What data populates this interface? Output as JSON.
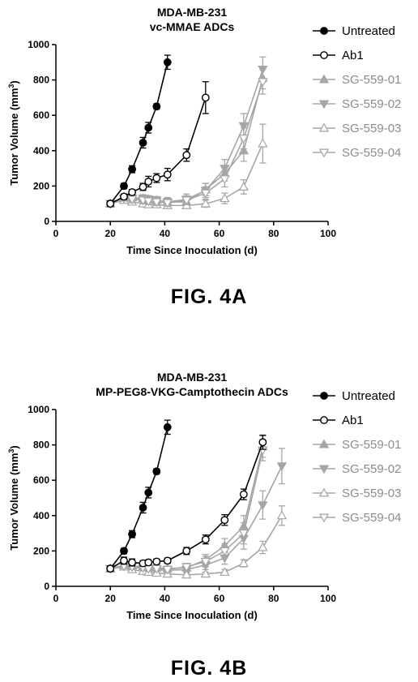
{
  "chart_data": [
    {
      "type": "line",
      "title": [
        "MDA-MB-231",
        "vc-MMAE ADCs"
      ],
      "xlabel": "Time Since Inoculation (d)",
      "ylabel": "Tumor Volume (mm",
      "ylabel_sup": "3",
      "ylabel_end": ")",
      "xlim": [
        0,
        100
      ],
      "ylim": [
        0,
        1000
      ],
      "xticks": [
        0,
        20,
        40,
        60,
        80,
        100
      ],
      "yticks": [
        0,
        200,
        400,
        600,
        800,
        1000
      ],
      "legend_position": "right",
      "series": [
        {
          "name": "Untreated",
          "marker": "circle-filled",
          "color": "#000000",
          "x": [
            20,
            25,
            28,
            32,
            34,
            37,
            41
          ],
          "y": [
            100,
            200,
            295,
            445,
            530,
            650,
            900
          ],
          "err": [
            15,
            15,
            20,
            30,
            30,
            15,
            40
          ]
        },
        {
          "name": "Ab1",
          "marker": "circle-open",
          "color": "#000000",
          "x": [
            20,
            25,
            28,
            32,
            34,
            37,
            41,
            48,
            55
          ],
          "y": [
            100,
            140,
            165,
            195,
            225,
            245,
            265,
            375,
            700
          ],
          "err": [
            15,
            15,
            15,
            20,
            30,
            25,
            35,
            35,
            90
          ]
        },
        {
          "name": "SG-559-01",
          "marker": "triangle-up-filled",
          "color": "#a6a6a6",
          "x": [
            20,
            25,
            28,
            32,
            34,
            37,
            41,
            48,
            55,
            62,
            69,
            76
          ],
          "y": [
            100,
            140,
            135,
            130,
            125,
            120,
            110,
            110,
            180,
            270,
            400,
            810
          ],
          "err": [
            10,
            15,
            20,
            20,
            20,
            20,
            20,
            25,
            35,
            40,
            60,
            60
          ]
        },
        {
          "name": "SG-559-02",
          "marker": "triangle-down-filled",
          "color": "#a6a6a6",
          "x": [
            20,
            25,
            28,
            32,
            34,
            37,
            41,
            48,
            55,
            62,
            69,
            76
          ],
          "y": [
            100,
            130,
            130,
            130,
            125,
            120,
            110,
            125,
            175,
            300,
            540,
            860
          ],
          "err": [
            10,
            15,
            20,
            20,
            20,
            20,
            25,
            30,
            40,
            50,
            70,
            70
          ]
        },
        {
          "name": "SG-559-03",
          "marker": "triangle-up-open",
          "color": "#a6a6a6",
          "x": [
            20,
            25,
            28,
            32,
            34,
            37,
            41,
            48,
            55,
            62,
            69,
            76
          ],
          "y": [
            100,
            120,
            110,
            100,
            95,
            95,
            90,
            90,
            100,
            130,
            195,
            440
          ],
          "err": [
            10,
            15,
            15,
            15,
            15,
            15,
            15,
            15,
            20,
            30,
            40,
            110
          ]
        },
        {
          "name": "SG-559-04",
          "marker": "triangle-down-open",
          "color": "#a6a6a6",
          "x": [
            20,
            25,
            28,
            32,
            34,
            37,
            41,
            48,
            55,
            62,
            69,
            76
          ],
          "y": [
            100,
            130,
            125,
            120,
            115,
            110,
            105,
            120,
            160,
            240,
            470,
            790
          ],
          "err": [
            10,
            15,
            20,
            20,
            20,
            20,
            20,
            25,
            35,
            45,
            60,
            70
          ]
        }
      ]
    },
    {
      "type": "line",
      "title": [
        "MDA-MB-231",
        "MP-PEG8-VKG-Camptothecin ADCs"
      ],
      "xlabel": "Time Since Inoculation (d)",
      "ylabel": "Tumor Volume (mm",
      "ylabel_sup": "3",
      "ylabel_end": ")",
      "xlim": [
        0,
        100
      ],
      "ylim": [
        0,
        1000
      ],
      "xticks": [
        0,
        20,
        40,
        60,
        80,
        100
      ],
      "yticks": [
        0,
        200,
        400,
        600,
        800,
        1000
      ],
      "legend_position": "right",
      "series": [
        {
          "name": "Untreated",
          "marker": "circle-filled",
          "color": "#000000",
          "x": [
            20,
            25,
            28,
            32,
            34,
            37,
            41
          ],
          "y": [
            100,
            200,
            295,
            445,
            530,
            650,
            900
          ],
          "err": [
            15,
            15,
            20,
            30,
            30,
            15,
            40
          ]
        },
        {
          "name": "Ab1",
          "marker": "circle-open",
          "color": "#000000",
          "x": [
            20,
            25,
            28,
            32,
            34,
            37,
            41,
            48,
            55,
            62,
            69,
            76
          ],
          "y": [
            100,
            145,
            135,
            130,
            135,
            140,
            145,
            200,
            265,
            375,
            520,
            815
          ],
          "err": [
            15,
            20,
            20,
            15,
            15,
            15,
            15,
            20,
            25,
            30,
            30,
            40
          ]
        },
        {
          "name": "SG-559-01",
          "marker": "triangle-up-filled",
          "color": "#a6a6a6",
          "x": [
            20,
            25,
            28,
            32,
            34,
            37,
            41,
            48,
            55,
            62,
            69,
            76
          ],
          "y": [
            100,
            120,
            115,
            110,
            105,
            105,
            100,
            105,
            150,
            230,
            340,
            790
          ],
          "err": [
            10,
            15,
            15,
            15,
            15,
            15,
            15,
            20,
            30,
            40,
            60,
            60
          ]
        },
        {
          "name": "SG-559-02",
          "marker": "triangle-down-filled",
          "color": "#a6a6a6",
          "x": [
            20,
            25,
            28,
            32,
            34,
            37,
            41,
            48,
            55,
            62,
            69,
            76,
            83
          ],
          "y": [
            100,
            115,
            110,
            100,
            95,
            95,
            90,
            95,
            120,
            160,
            270,
            460,
            680
          ],
          "err": [
            10,
            15,
            15,
            15,
            15,
            15,
            15,
            15,
            25,
            35,
            60,
            80,
            100
          ]
        },
        {
          "name": "SG-559-03",
          "marker": "triangle-up-open",
          "color": "#a6a6a6",
          "x": [
            20,
            25,
            28,
            32,
            34,
            37,
            41,
            48,
            55,
            62,
            69,
            76,
            83
          ],
          "y": [
            100,
            110,
            95,
            85,
            80,
            75,
            70,
            65,
            70,
            80,
            130,
            220,
            400
          ],
          "err": [
            10,
            15,
            15,
            15,
            10,
            10,
            10,
            10,
            10,
            15,
            20,
            35,
            55
          ]
        },
        {
          "name": "SG-559-04",
          "marker": "triangle-down-open",
          "color": "#a6a6a6",
          "x": [
            20,
            25,
            28,
            32,
            34,
            37,
            41,
            48,
            55,
            62,
            69,
            76
          ],
          "y": [
            100,
            115,
            110,
            105,
            100,
            100,
            95,
            110,
            140,
            200,
            300,
            770
          ],
          "err": [
            10,
            15,
            15,
            15,
            15,
            15,
            15,
            20,
            30,
            40,
            60,
            60
          ]
        }
      ]
    }
  ],
  "figure_labels": [
    "FIG.  4A",
    "FIG.  4B"
  ]
}
